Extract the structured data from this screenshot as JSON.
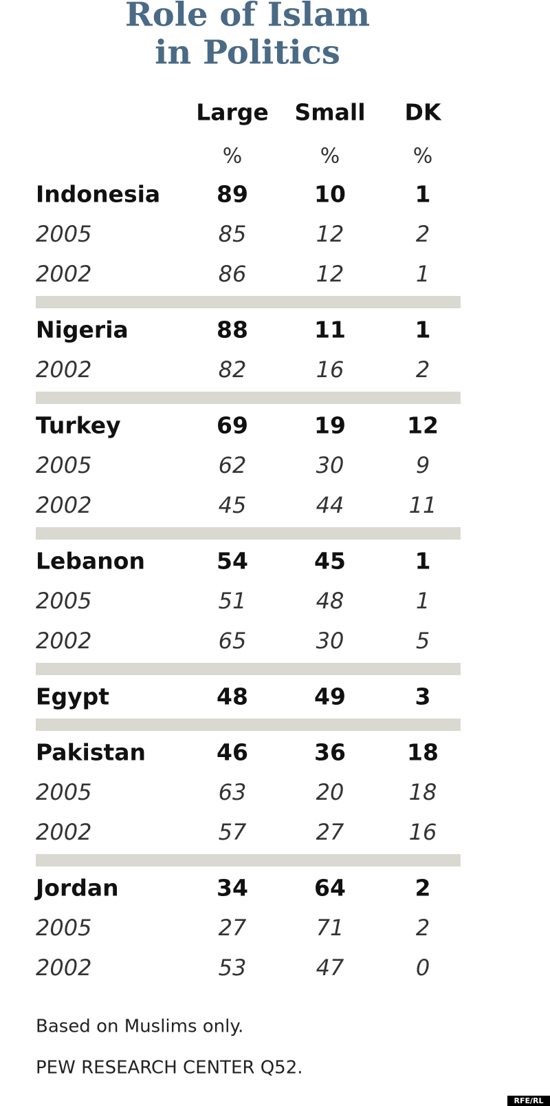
{
  "title_lines": [
    "Role of Islam",
    "in Politics"
  ],
  "columns": [
    "Large",
    "Small",
    "DK"
  ],
  "units": [
    "%",
    "%",
    "%"
  ],
  "groups": [
    {
      "rows": [
        {
          "label": "Indonesia",
          "values": [
            89,
            10,
            1
          ]
        },
        {
          "label": "2005",
          "values": [
            85,
            12,
            2
          ]
        },
        {
          "label": "2002",
          "values": [
            86,
            12,
            1
          ]
        }
      ]
    },
    {
      "rows": [
        {
          "label": "Nigeria",
          "values": [
            88,
            11,
            1
          ]
        },
        {
          "label": "2002",
          "values": [
            82,
            16,
            2
          ]
        }
      ]
    },
    {
      "rows": [
        {
          "label": "Turkey",
          "values": [
            69,
            19,
            12
          ]
        },
        {
          "label": "2005",
          "values": [
            62,
            30,
            9
          ]
        },
        {
          "label": "2002",
          "values": [
            45,
            44,
            11
          ]
        }
      ]
    },
    {
      "rows": [
        {
          "label": "Lebanon",
          "values": [
            54,
            45,
            1
          ]
        },
        {
          "label": "2005",
          "values": [
            51,
            48,
            1
          ]
        },
        {
          "label": "2002",
          "values": [
            65,
            30,
            5
          ]
        }
      ]
    },
    {
      "rows": [
        {
          "label": "Egypt",
          "values": [
            48,
            49,
            3
          ]
        }
      ]
    },
    {
      "rows": [
        {
          "label": "Pakistan",
          "values": [
            46,
            36,
            18
          ]
        },
        {
          "label": "2005",
          "values": [
            63,
            20,
            18
          ]
        },
        {
          "label": "2002",
          "values": [
            57,
            27,
            16
          ]
        }
      ]
    },
    {
      "rows": [
        {
          "label": "Jordan",
          "values": [
            34,
            64,
            2
          ]
        },
        {
          "label": "2005",
          "values": [
            27,
            71,
            2
          ]
        },
        {
          "label": "2002",
          "values": [
            53,
            47,
            0
          ]
        }
      ]
    }
  ],
  "footnotes": [
    "Based on Muslims only.",
    "PEW RESEARCH CENTER Q52."
  ],
  "watermark": "RFE/RL"
}
